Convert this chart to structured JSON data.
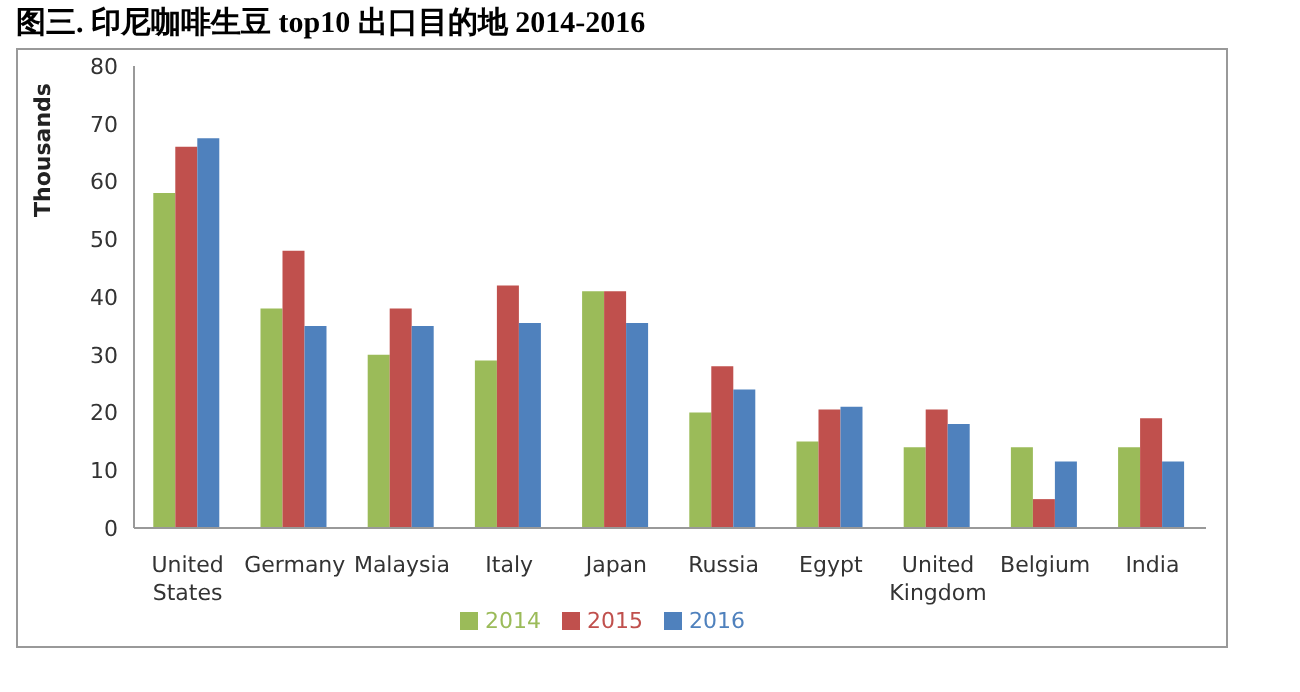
{
  "chart_data": {
    "type": "bar",
    "title": "图三. 印尼咖啡生豆 top10 出口目的地  2014-2016",
    "ylabel": "Thousands",
    "categories": [
      "United States",
      "Germany",
      "Malaysia",
      "Italy",
      "Japan",
      "Russia",
      "Egypt",
      "United Kingdom",
      "Belgium",
      "India"
    ],
    "series": [
      {
        "name": "2014",
        "color": "#9bbb59",
        "values": [
          58,
          38,
          30,
          29,
          41,
          20,
          15,
          14,
          14,
          14
        ]
      },
      {
        "name": "2015",
        "color": "#c0504d",
        "values": [
          66,
          48,
          38,
          42,
          41,
          28,
          20.5,
          20.5,
          5,
          19
        ]
      },
      {
        "name": "2016",
        "color": "#4f81bd",
        "values": [
          67.5,
          35,
          35,
          35.5,
          35.5,
          24,
          21,
          18,
          11.5,
          11.5
        ]
      }
    ],
    "ylim": [
      0,
      80
    ],
    "yticks": [
      0,
      10,
      20,
      30,
      40,
      50,
      60,
      70,
      80
    ],
    "grid": false,
    "legend": "bottom"
  }
}
